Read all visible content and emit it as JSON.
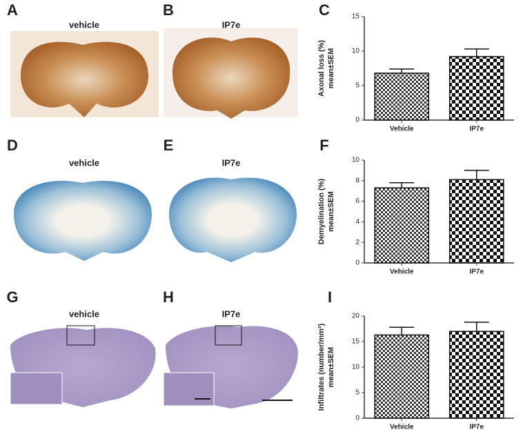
{
  "image_panels": [
    {
      "label": "A",
      "title": "vehicle"
    },
    {
      "label": "B",
      "title": "IP7e"
    },
    {
      "label": "D",
      "title": "vehicle"
    },
    {
      "label": "E",
      "title": "IP7e"
    },
    {
      "label": "G",
      "title": "vehicle"
    },
    {
      "label": "H",
      "title": "IP7e"
    }
  ],
  "chart_data": [
    {
      "type": "bar",
      "panel": "C",
      "ylabel": [
        "Axonal loss (%)",
        "mean±SEM"
      ],
      "categories": [
        "Vehicle",
        "IP7e"
      ],
      "values": [
        6.8,
        9.2
      ],
      "errors": [
        0.6,
        1.1
      ],
      "ylim": [
        0,
        15
      ],
      "yticks": [
        0,
        5,
        10,
        15
      ]
    },
    {
      "type": "bar",
      "panel": "F",
      "ylabel": [
        "Demyelination (%)",
        "mean±SEM"
      ],
      "categories": [
        "Vehicle",
        "IP7e"
      ],
      "values": [
        7.3,
        8.1
      ],
      "errors": [
        0.5,
        0.9
      ],
      "ylim": [
        0,
        10
      ],
      "yticks": [
        0,
        2,
        4,
        6,
        8,
        10
      ]
    },
    {
      "type": "bar",
      "panel": "I",
      "ylabel": [
        "Infiltrates (number/mm²)",
        "mean±SEM"
      ],
      "categories": [
        "Vehicle",
        "IP7e"
      ],
      "values": [
        16.3,
        17.0
      ],
      "errors": [
        1.5,
        1.8
      ],
      "ylim": [
        0,
        20
      ],
      "yticks": [
        0,
        5,
        10,
        15,
        20
      ]
    }
  ]
}
